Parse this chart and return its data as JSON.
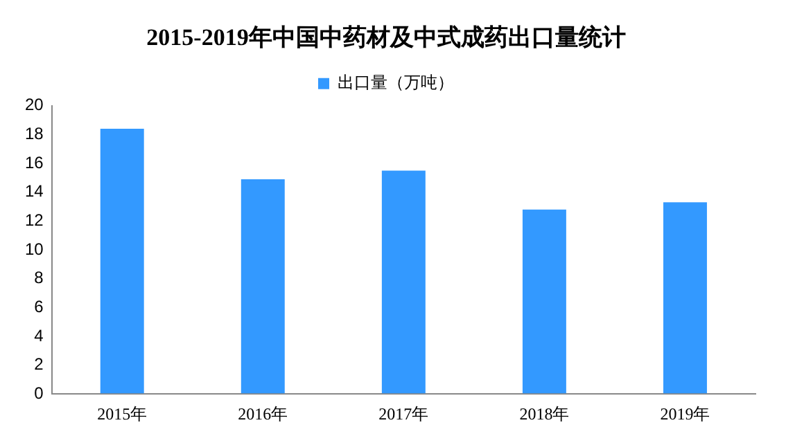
{
  "chart_data": {
    "type": "bar",
    "title": "2015-2019年中国中药材及中式成药出口量统计",
    "categories": [
      "2015年",
      "2016年",
      "2017年",
      "2018年",
      "2019年"
    ],
    "series": [
      {
        "name": "出口量（万吨）",
        "color": "#3399ff",
        "values": [
          18.4,
          14.9,
          15.5,
          12.8,
          13.3
        ]
      }
    ],
    "ylim": [
      0,
      20
    ],
    "yticks": [
      0,
      2,
      4,
      6,
      8,
      10,
      12,
      14,
      16,
      18,
      20
    ],
    "grid": false,
    "legend": "top"
  }
}
